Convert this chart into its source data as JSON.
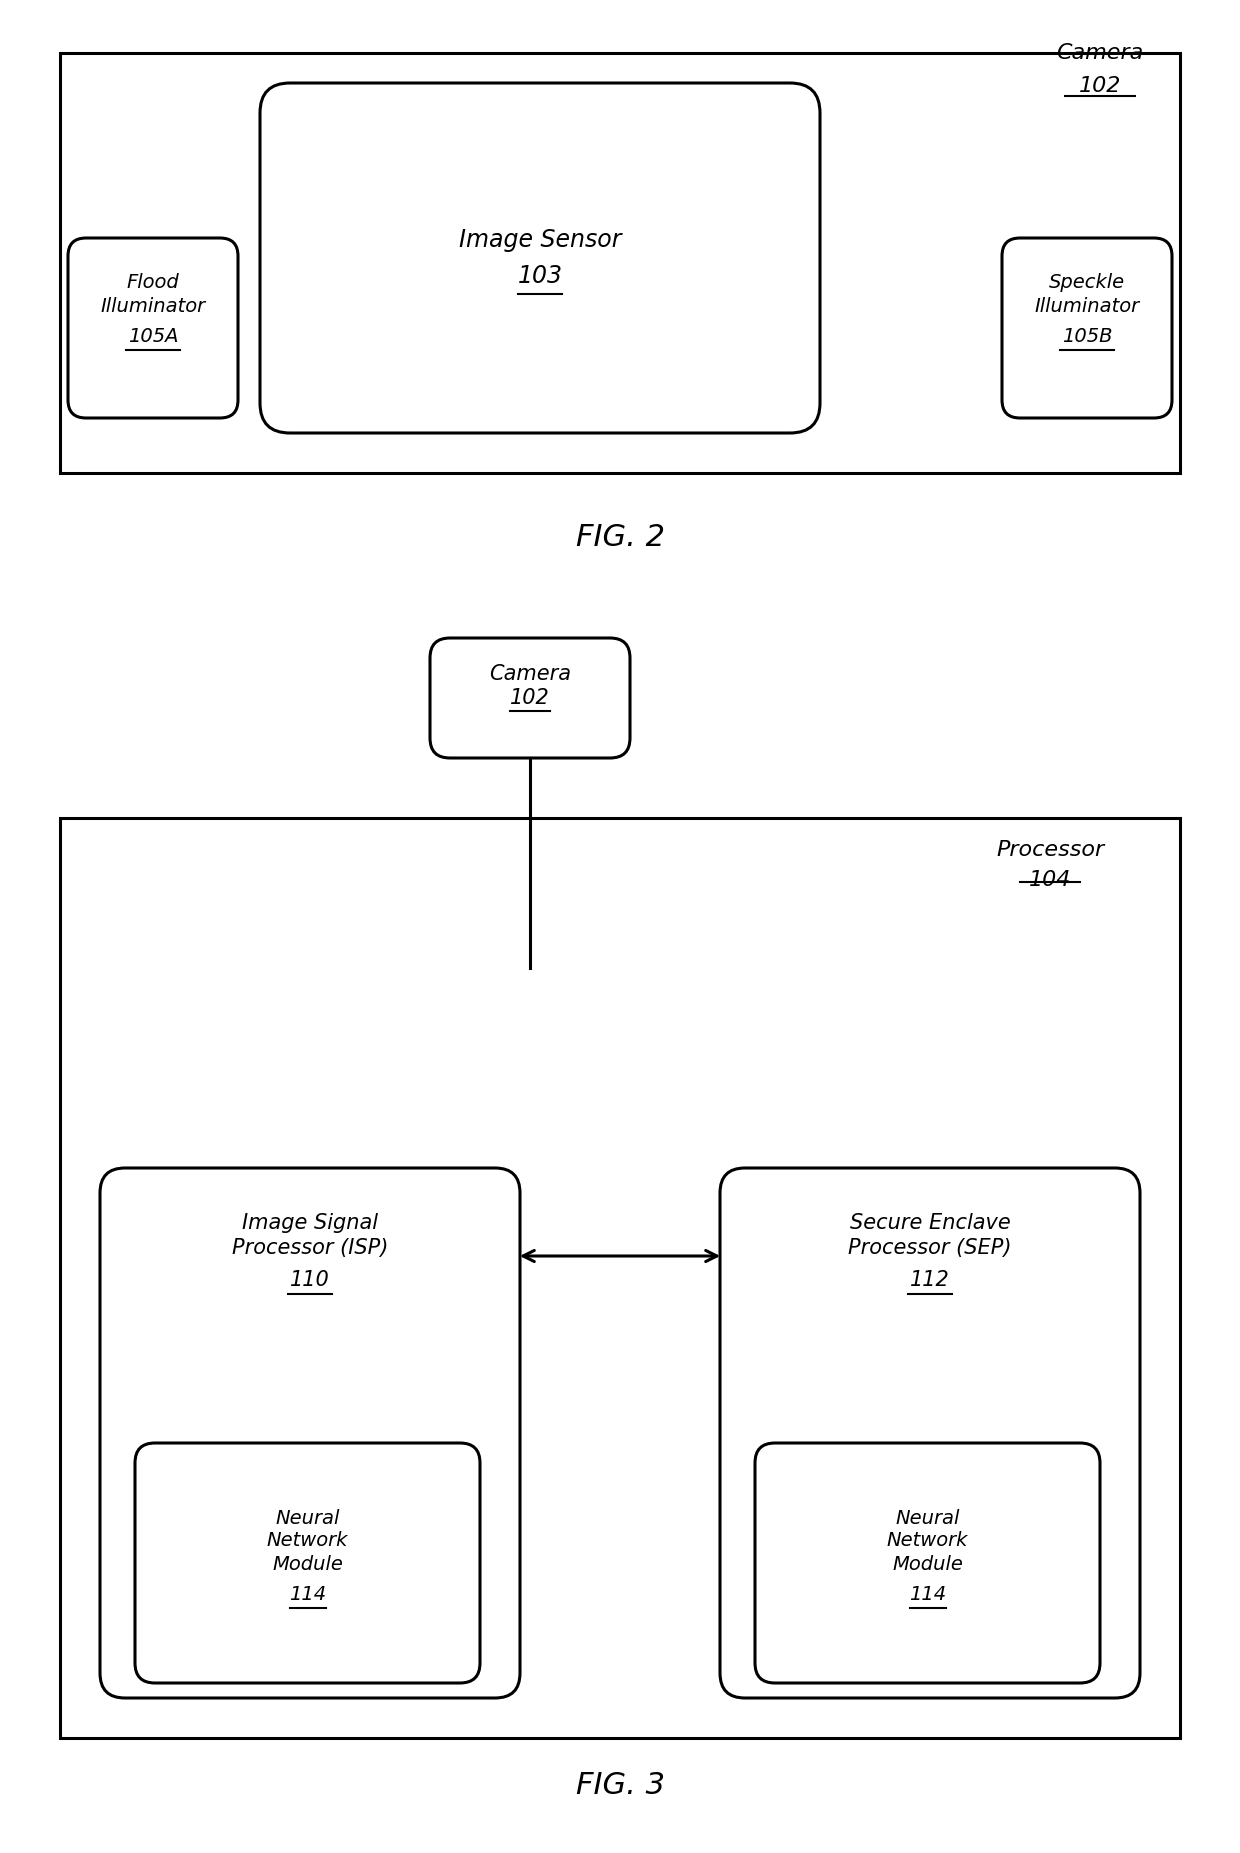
{
  "bg_color": "#ffffff",
  "lc": "#000000",
  "fig2": {
    "title": "FIG. 2",
    "camera_label": "Camera",
    "camera_num": "102",
    "image_sensor_label": "Image Sensor",
    "image_sensor_num": "103",
    "flood_label": "Flood\nIlluminator",
    "flood_num": "105A",
    "speckle_label": "Speckle\nIlluminator",
    "speckle_num": "105B"
  },
  "fig3": {
    "title": "FIG. 3",
    "camera_label": "Camera",
    "camera_num": "102",
    "processor_label": "Processor",
    "processor_num": "104",
    "isp_label": "Image Signal\nProcessor (ISP)",
    "isp_num": "110",
    "sep_label": "Secure Enclave\nProcessor (SEP)",
    "sep_num": "112",
    "nn_label": "Neural\nNetwork\nModule",
    "nn_num": "114"
  }
}
